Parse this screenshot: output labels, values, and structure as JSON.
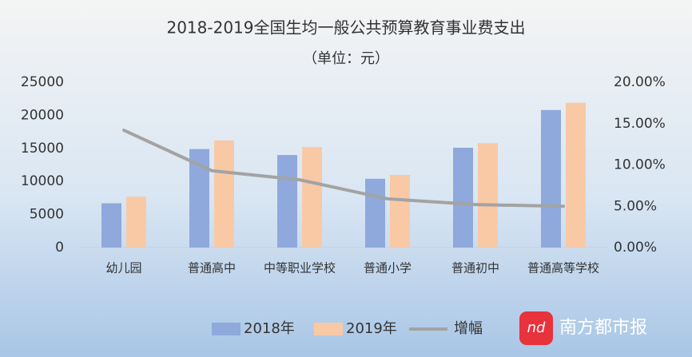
{
  "chart_data": {
    "type": "bar_line",
    "title": "2018-2019全国生均一般公共预算教育事业费支出",
    "subtitle": "（单位：元）",
    "categories": [
      "幼儿园",
      "普通高中",
      "中等职业学校",
      "普通小学",
      "普通初中",
      "普通高等学校"
    ],
    "series": [
      {
        "name": "2018年",
        "type": "bar",
        "color": "#8fa9dc",
        "values": [
          6700,
          14900,
          14000,
          10400,
          15100,
          20800
        ]
      },
      {
        "name": "2019年",
        "type": "bar",
        "color": "#f9c9a6",
        "values": [
          7700,
          16200,
          15200,
          11000,
          15800,
          21900
        ]
      },
      {
        "name": "增幅",
        "type": "line",
        "axis": "y2",
        "color": "#a3a3a3",
        "values": [
          14.2,
          9.3,
          8.2,
          5.9,
          5.2,
          5.0
        ]
      }
    ],
    "ylim": [
      0,
      25000
    ],
    "yticks": [
      0,
      5000,
      10000,
      15000,
      20000,
      25000
    ],
    "y2lim": [
      0,
      20
    ],
    "y2ticks": [
      {
        "value": 0,
        "label": "0.00%"
      },
      {
        "value": 5,
        "label": "5.00%"
      },
      {
        "value": 10,
        "label": "10.00%"
      },
      {
        "value": 15,
        "label": "15.00%"
      },
      {
        "value": 20,
        "label": "20.00%"
      }
    ],
    "grid": false,
    "legend": "bottom",
    "annotations": [
      "nd",
      "南方都市报"
    ]
  }
}
